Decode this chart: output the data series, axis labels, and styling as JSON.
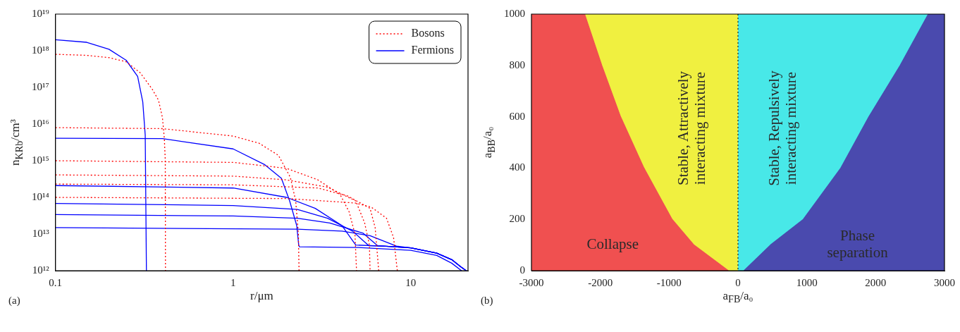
{
  "chart_data": [
    {
      "type": "line",
      "xlabel": "r/μm",
      "ylabel": "n$_{KRb}$/cm³",
      "log": "xy",
      "legend": "top right",
      "annotations": [
        "(a)"
      ],
      "xlim": [
        0.1,
        21
      ],
      "xticks": [
        0.1,
        1,
        10
      ],
      "ylim": [
        1000000000000.0,
        1e+19
      ],
      "yticks": [
        {
          "value": 1000000000000.0,
          "label": "10¹²"
        },
        {
          "value": 10000000000000.0,
          "label": "10¹³"
        },
        {
          "value": 100000000000000.0,
          "label": "10¹⁴"
        },
        {
          "value": 1000000000000000.0,
          "label": "10¹⁵"
        },
        {
          "value": 1e+16,
          "label": "10¹⁶"
        },
        {
          "value": 1e+17,
          "label": "10¹⁷"
        },
        {
          "value": 1e+18,
          "label": "10¹⁸"
        },
        {
          "value": 1e+19,
          "label": "10¹⁹"
        }
      ],
      "series": [
        {
          "name": "Bosons",
          "color": "#ff0000",
          "line_style": "dotted",
          "x": [
            0.1,
            0.15,
            0.2,
            0.25,
            0.3,
            0.35,
            0.38,
            0.4,
            0.41,
            0.415,
            0.416
          ],
          "values": [
            8e+17,
            7.5e+17,
            6.5e+17,
            5e+17,
            2.5e+17,
            9e+16,
            4.5e+16,
            1.5e+16,
            4000000000000000.0,
            1000000000000000.0,
            1000000000000.0
          ]
        },
        {
          "color": "#ff0000",
          "line_style": "dotted",
          "x": [
            0.1,
            0.4,
            1,
            1.4,
            1.8,
            2.1,
            2.25,
            2.33,
            2.35
          ],
          "values": [
            8000000000000000.0,
            7500000000000000.0,
            4700000000000000.0,
            3000000000000000.0,
            1400000000000000.0,
            350000000000000.0,
            80000000000000.0,
            10000000000000.0,
            1000000000000.0
          ]
        },
        {
          "color": "#ff0000",
          "line_style": "dotted",
          "x": [
            0.1,
            1,
            2,
            3,
            4,
            4.5,
            4.85,
            4.95
          ],
          "values": [
            1000000000000000.0,
            900000000000000.0,
            620000000000000.0,
            300000000000000.0,
            120000000000000.0,
            40000000000000.0,
            10000000000000.0,
            1000000000000.0
          ]
        },
        {
          "color": "#ff0000",
          "line_style": "dotted",
          "x": [
            0.1,
            1,
            2,
            3.4,
            4.9,
            5.5,
            5.85,
            5.9
          ],
          "values": [
            410000000000000.0,
            380000000000000.0,
            300000000000000.0,
            190000000000000.0,
            80000000000000.0,
            20000000000000.0,
            5000000000000.0,
            1000000000000.0
          ]
        },
        {
          "color": "#ff0000",
          "line_style": "dotted",
          "x": [
            0.1,
            1,
            3,
            4.4,
            5.9,
            6.3,
            6.6
          ],
          "values": [
            230000000000000.0,
            220000000000000.0,
            180000000000000.0,
            110000000000000.0,
            50000000000000.0,
            15000000000000.0,
            1000000000000.0
          ]
        },
        {
          "color": "#ff0000",
          "line_style": "dotted",
          "x": [
            0.1,
            2,
            4.9,
            6,
            7.3,
            8,
            8.4
          ],
          "values": [
            100000000000000.0,
            93000000000000.0,
            70000000000000.0,
            54000000000000.0,
            27000000000000.0,
            8000000000000.0,
            1000000000000.0
          ]
        },
        {
          "name": "Fermions",
          "color": "#0000ff",
          "line_style": "solid",
          "x": [
            0.1,
            0.15,
            0.2,
            0.25,
            0.29,
            0.31,
            0.32,
            0.325
          ],
          "values": [
            2e+18,
            1.7e+18,
            1.1e+18,
            5.5e+17,
            2e+17,
            4e+16,
            5000000000000000.0,
            1000000000000.0
          ]
        },
        {
          "color": "#0000ff",
          "line_style": "solid",
          "x": [
            0.1,
            0.4,
            1,
            1.5,
            1.87,
            2.08,
            2.28,
            2.34,
            2.36,
            5,
            10,
            14,
            17,
            19.3
          ],
          "values": [
            4100000000000000.0,
            4000000000000000.0,
            2100000000000000.0,
            790000000000000.0,
            330000000000000.0,
            80000000000000.0,
            17000000000000.0,
            5000000000000.0,
            4500000000000.0,
            4300000000000.0,
            3600000000000.0,
            2600000000000.0,
            1600000000000.0,
            1000000000000.0
          ]
        },
        {
          "color": "#0000ff",
          "line_style": "solid",
          "x": [
            0.1,
            1,
            2,
            2.9,
            4.1,
            4.9,
            7,
            10,
            14,
            17,
            19,
            20.5
          ],
          "values": [
            210000000000000.0,
            180000000000000.0,
            100000000000000.0,
            50000000000000.0,
            17000000000000.0,
            5000000000000.0,
            4700000000000.0,
            4200000000000.0,
            3000000000000.0,
            2000000000000.0,
            1300000000000.0,
            1000000000000.0
          ]
        },
        {
          "color": "#0000ff",
          "line_style": "solid",
          "x": [
            0.1,
            1,
            2.3,
            3.4,
            4.7,
            5.8,
            7,
            10,
            14,
            17,
            19,
            20.5
          ],
          "values": [
            68000000000000.0,
            60000000000000.0,
            47000000000000.0,
            27000000000000.0,
            12000000000000.0,
            4800000000000.0,
            4700000000000.0,
            4200000000000.0,
            3000000000000.0,
            2000000000000.0,
            1300000000000.0,
            1000000000000.0
          ]
        },
        {
          "color": "#0000ff",
          "line_style": "solid",
          "x": [
            0.1,
            1,
            2.3,
            3.5,
            5.4,
            6.5,
            7,
            10,
            14,
            17,
            19,
            20.5
          ],
          "values": [
            34000000000000.0,
            31000000000000.0,
            27000000000000.0,
            20000000000000.0,
            10500000000000.0,
            4800000000000.0,
            4700000000000.0,
            4200000000000.0,
            3000000000000.0,
            2000000000000.0,
            1300000000000.0,
            1000000000000.0
          ]
        },
        {
          "color": "#0000ff",
          "line_style": "solid",
          "x": [
            0.1,
            2.3,
            4.1,
            5.9,
            8.3,
            10,
            14,
            17,
            19,
            20.5
          ],
          "values": [
            15000000000000.0,
            13500000000000.0,
            12000000000000.0,
            9000000000000.0,
            4700000000000.0,
            4200000000000.0,
            3000000000000.0,
            2000000000000.0,
            1300000000000.0,
            1000000000000.0
          ]
        }
      ]
    },
    {
      "type": "area",
      "xlabel": "a$_{FB}$/a₀",
      "ylabel": "a$_{BB}$/a₀",
      "annotations": [
        "(b)"
      ],
      "bands": [
        {
          "axis": "x",
          "from": -3000,
          "to": 0,
          "label": "Stable, Attractively\ninteracting mixture",
          "color": "#f0f040"
        },
        {
          "axis": "x",
          "from": 0,
          "to": 3000,
          "label": "Stable, Repulsively\ninteracting mixture",
          "color": "#48e8e8"
        }
      ],
      "xlim": [
        -3000,
        3000
      ],
      "xticks": [
        -3000,
        -2000,
        -1000,
        0,
        1000,
        2000,
        3000
      ],
      "ylim": [
        0,
        1000
      ],
      "yticks": [
        0,
        200,
        400,
        600,
        800,
        1000
      ],
      "ref_lines": [
        {
          "axis": "x",
          "value": 0,
          "color": "#000000",
          "line_style": "dotted"
        }
      ],
      "series": [
        {
          "name": "Collapse",
          "color": "#f05050",
          "x": [
            -3000,
            -2228,
            -1979,
            -1706,
            -1366,
            -957,
            -640,
            -140
          ],
          "values": [
            1000,
            1000,
            800,
            600,
            400,
            200,
            100,
            0
          ]
        },
        {
          "name": "Phase\nseparation",
          "color": "#4a4aae",
          "x": [
            87,
            472,
            949,
            1494,
            1902,
            2356,
            2765,
            3000
          ],
          "values": [
            0,
            100,
            200,
            400,
            600,
            800,
            1000,
            1000
          ]
        }
      ]
    }
  ]
}
